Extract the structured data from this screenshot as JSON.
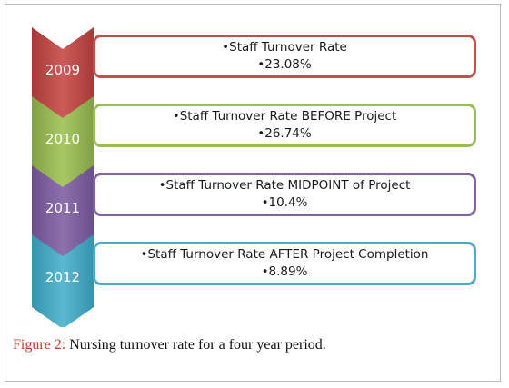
{
  "colors": {
    "s2009": "#c0504d",
    "s2010": "#9bbb59",
    "s2011": "#8064a2",
    "s2012": "#4bacc6"
  },
  "steps": [
    {
      "year": "2009",
      "line1": "•Staff Turnover Rate",
      "line2": "•23.08%"
    },
    {
      "year": "2010",
      "line1": "•Staff Turnover Rate BEFORE Project",
      "line2": "•26.74%"
    },
    {
      "year": "2011",
      "line1": "•Staff Turnover Rate MIDPOINT of Project",
      "line2": "•10.4%"
    },
    {
      "year": "2012",
      "line1": "•Staff Turnover Rate AFTER Project Completion",
      "line2": "•8.89%"
    }
  ],
  "caption": {
    "label": "Figure 2:",
    "text": " Nursing turnover rate for a four year period."
  }
}
